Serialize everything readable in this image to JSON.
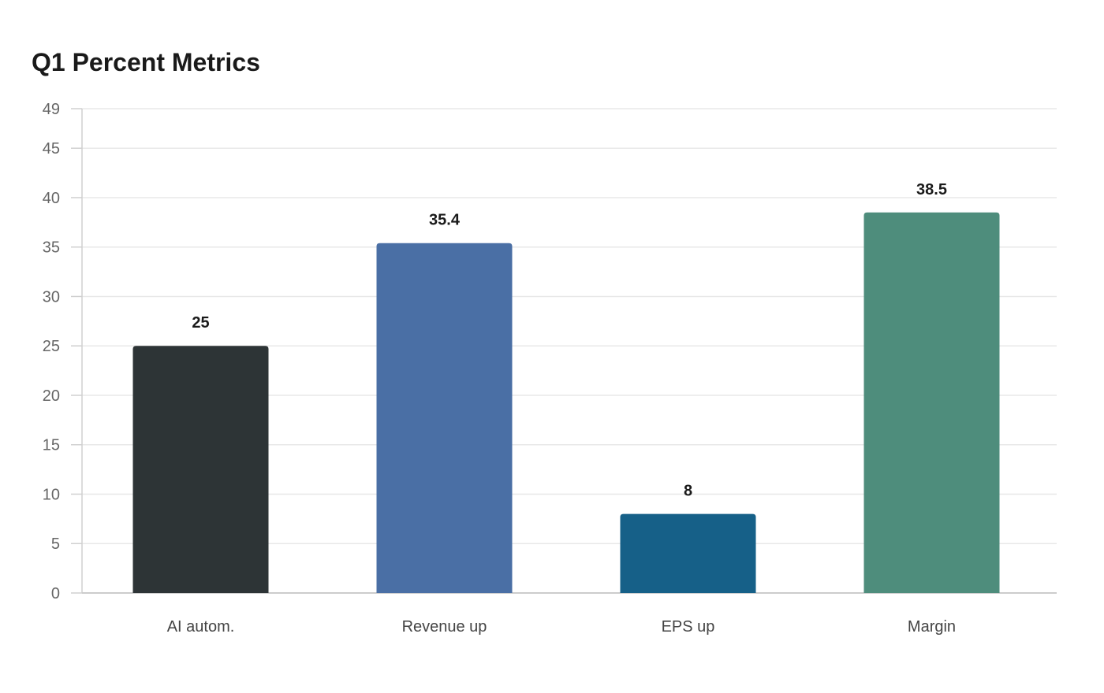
{
  "chart_data": {
    "type": "bar",
    "title": "Q1 Percent Metrics",
    "categories": [
      "AI autom.",
      "Revenue up",
      "EPS up",
      "Margin"
    ],
    "values": [
      25,
      35.4,
      8,
      38.5
    ],
    "value_labels": [
      "25",
      "35.4",
      "8",
      "38.5"
    ],
    "colors": [
      "#2d3436",
      "#4a6fa5",
      "#166088",
      "#4e8d7c"
    ],
    "xlabel": "",
    "ylabel": "",
    "ylim": [
      0,
      49
    ],
    "yticks": [
      0,
      5,
      10,
      15,
      20,
      25,
      30,
      35,
      40,
      45,
      49
    ],
    "grid": true,
    "legend": "none"
  }
}
